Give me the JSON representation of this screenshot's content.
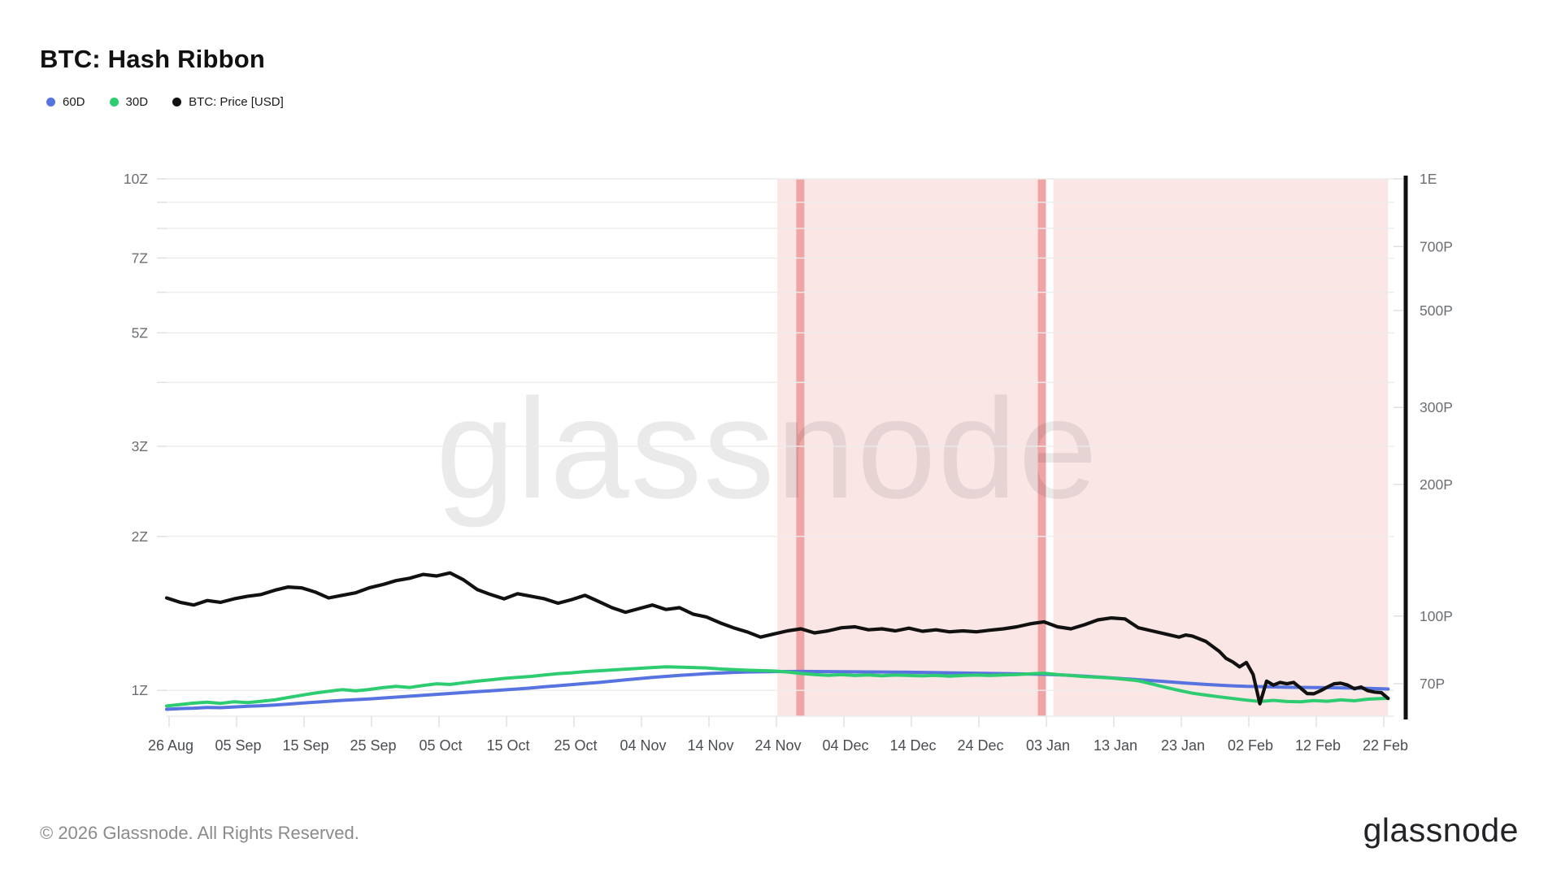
{
  "page": {
    "title": "BTC: Hash Ribbon",
    "watermark": "glassnode",
    "footer_copyright": "© 2026 Glassnode. All Rights Reserved.",
    "footer_logo": "glassnode"
  },
  "legend": [
    {
      "label": "60D",
      "color": "#5673e0"
    },
    {
      "label": "30D",
      "color": "#2ecc71"
    },
    {
      "label": "BTC: Price [USD]",
      "color": "#111111"
    }
  ],
  "colors": {
    "band_light": "#fbe6e6",
    "band_dark": "#efa5a5",
    "gridline": "#ececec",
    "tick": "#dedede",
    "axis_label": "#6b6f73",
    "x_label": "#4a4d52",
    "right_axis_bar": "#111111",
    "watermark": "#000000"
  },
  "chart_data": {
    "type": "line",
    "title": "BTC: Hash Ribbon",
    "x_axis": {
      "tick_labels": [
        "26 Aug",
        "05 Sep",
        "15 Sep",
        "25 Sep",
        "05 Oct",
        "15 Oct",
        "25 Oct",
        "04 Nov",
        "14 Nov",
        "24 Nov",
        "04 Dec",
        "14 Dec",
        "24 Dec",
        "03 Jan",
        "13 Jan",
        "23 Jan",
        "02 Feb",
        "12 Feb",
        "22 Feb"
      ],
      "tick_days": [
        0,
        10,
        20,
        30,
        40,
        50,
        60,
        70,
        80,
        90,
        100,
        110,
        120,
        130,
        140,
        150,
        160,
        170,
        180
      ],
      "total_days": 181.6
    },
    "left_axis": {
      "scale": "log",
      "unit": "Z (zetahash)",
      "top_value": 10,
      "bottom_value": 0.89,
      "gridline_values": [
        10,
        9,
        8,
        7,
        6,
        5,
        4,
        3,
        2,
        1
      ],
      "labels": [
        {
          "value": 10,
          "label": "10Z"
        },
        {
          "value": 7,
          "label": "7Z"
        },
        {
          "value": 5,
          "label": "5Z"
        },
        {
          "value": 3,
          "label": "3Z"
        },
        {
          "value": 2,
          "label": "2Z"
        },
        {
          "value": 1,
          "label": "1Z"
        }
      ]
    },
    "right_axis": {
      "scale": "log",
      "unit": "P (petahash) / E (exahash)",
      "top_value": 1000,
      "bottom_value": 59,
      "labels": [
        {
          "value": 1000,
          "label": "1E"
        },
        {
          "value": 700,
          "label": "700P"
        },
        {
          "value": 500,
          "label": "500P"
        },
        {
          "value": 300,
          "label": "300P"
        },
        {
          "value": 200,
          "label": "200P"
        },
        {
          "value": 100,
          "label": "100P"
        },
        {
          "value": 70,
          "label": "70P"
        }
      ]
    },
    "highlight_bands": [
      {
        "start_day": 90.5,
        "end_day": 130.3,
        "shade": "light"
      },
      {
        "start_day": 131.4,
        "end_day": 181.0,
        "shade": "light"
      },
      {
        "start_day": 93.3,
        "end_day": 94.5,
        "shade": "dark"
      },
      {
        "start_day": 129.1,
        "end_day": 130.3,
        "shade": "dark"
      }
    ],
    "series": [
      {
        "name": "60D",
        "axis": "left",
        "color": "#5673e0",
        "width": 4,
        "points": [
          [
            0,
            0.918
          ],
          [
            2,
            0.921
          ],
          [
            4,
            0.923
          ],
          [
            6,
            0.926
          ],
          [
            8,
            0.925
          ],
          [
            10,
            0.928
          ],
          [
            12,
            0.931
          ],
          [
            14,
            0.933
          ],
          [
            16,
            0.936
          ],
          [
            18,
            0.94
          ],
          [
            20,
            0.944
          ],
          [
            22,
            0.948
          ],
          [
            24,
            0.952
          ],
          [
            26,
            0.956
          ],
          [
            28,
            0.959
          ],
          [
            30,
            0.962
          ],
          [
            32,
            0.966
          ],
          [
            34,
            0.97
          ],
          [
            36,
            0.974
          ],
          [
            38,
            0.978
          ],
          [
            40,
            0.982
          ],
          [
            42,
            0.986
          ],
          [
            44,
            0.99
          ],
          [
            46,
            0.994
          ],
          [
            48,
            0.998
          ],
          [
            50,
            1.002
          ],
          [
            52,
            1.006
          ],
          [
            54,
            1.011
          ],
          [
            56,
            1.016
          ],
          [
            58,
            1.021
          ],
          [
            60,
            1.026
          ],
          [
            62,
            1.031
          ],
          [
            64,
            1.036
          ],
          [
            66,
            1.042
          ],
          [
            68,
            1.048
          ],
          [
            70,
            1.054
          ],
          [
            72,
            1.06
          ],
          [
            74,
            1.065
          ],
          [
            76,
            1.07
          ],
          [
            78,
            1.074
          ],
          [
            80,
            1.078
          ],
          [
            82,
            1.081
          ],
          [
            84,
            1.084
          ],
          [
            86,
            1.086
          ],
          [
            88,
            1.087
          ],
          [
            90,
            1.088
          ],
          [
            94,
            1.089
          ],
          [
            98,
            1.088
          ],
          [
            102,
            1.087
          ],
          [
            106,
            1.086
          ],
          [
            110,
            1.085
          ],
          [
            114,
            1.083
          ],
          [
            118,
            1.081
          ],
          [
            122,
            1.079
          ],
          [
            126,
            1.077
          ],
          [
            130,
            1.075
          ],
          [
            133,
            1.071
          ],
          [
            136,
            1.066
          ],
          [
            139,
            1.06
          ],
          [
            142,
            1.053
          ],
          [
            145,
            1.047
          ],
          [
            148,
            1.04
          ],
          [
            151,
            1.033
          ],
          [
            154,
            1.027
          ],
          [
            157,
            1.022
          ],
          [
            160,
            1.018
          ],
          [
            163,
            1.016
          ],
          [
            166,
            1.014
          ],
          [
            169,
            1.013
          ],
          [
            172,
            1.012
          ],
          [
            175,
            1.011
          ],
          [
            178,
            1.009
          ],
          [
            181,
            1.006
          ]
        ]
      },
      {
        "name": "30D",
        "axis": "left",
        "color": "#2ecc71",
        "width": 4,
        "points": [
          [
            0,
            0.932
          ],
          [
            2,
            0.938
          ],
          [
            4,
            0.944
          ],
          [
            6,
            0.948
          ],
          [
            8,
            0.943
          ],
          [
            10,
            0.95
          ],
          [
            12,
            0.946
          ],
          [
            14,
            0.952
          ],
          [
            16,
            0.958
          ],
          [
            18,
            0.968
          ],
          [
            20,
            0.978
          ],
          [
            22,
            0.988
          ],
          [
            24,
            0.996
          ],
          [
            26,
            1.003
          ],
          [
            28,
            0.998
          ],
          [
            30,
            1.004
          ],
          [
            32,
            1.012
          ],
          [
            34,
            1.018
          ],
          [
            36,
            1.013
          ],
          [
            38,
            1.022
          ],
          [
            40,
            1.03
          ],
          [
            42,
            1.027
          ],
          [
            44,
            1.035
          ],
          [
            46,
            1.042
          ],
          [
            48,
            1.048
          ],
          [
            50,
            1.055
          ],
          [
            52,
            1.06
          ],
          [
            54,
            1.065
          ],
          [
            56,
            1.072
          ],
          [
            58,
            1.078
          ],
          [
            60,
            1.082
          ],
          [
            62,
            1.088
          ],
          [
            64,
            1.092
          ],
          [
            66,
            1.096
          ],
          [
            68,
            1.1
          ],
          [
            70,
            1.104
          ],
          [
            72,
            1.108
          ],
          [
            74,
            1.112
          ],
          [
            76,
            1.11
          ],
          [
            78,
            1.108
          ],
          [
            80,
            1.106
          ],
          [
            82,
            1.101
          ],
          [
            84,
            1.098
          ],
          [
            86,
            1.095
          ],
          [
            88,
            1.093
          ],
          [
            90,
            1.091
          ],
          [
            92,
            1.086
          ],
          [
            94,
            1.079
          ],
          [
            96,
            1.074
          ],
          [
            98,
            1.07
          ],
          [
            100,
            1.073
          ],
          [
            102,
            1.069
          ],
          [
            104,
            1.072
          ],
          [
            106,
            1.068
          ],
          [
            108,
            1.071
          ],
          [
            110,
            1.069
          ],
          [
            112,
            1.067
          ],
          [
            114,
            1.07
          ],
          [
            116,
            1.066
          ],
          [
            118,
            1.069
          ],
          [
            120,
            1.071
          ],
          [
            122,
            1.069
          ],
          [
            124,
            1.072
          ],
          [
            126,
            1.074
          ],
          [
            128,
            1.077
          ],
          [
            130,
            1.08
          ],
          [
            132,
            1.074
          ],
          [
            134,
            1.069
          ],
          [
            136,
            1.064
          ],
          [
            138,
            1.061
          ],
          [
            140,
            1.057
          ],
          [
            142,
            1.051
          ],
          [
            144,
            1.044
          ],
          [
            146,
            1.029
          ],
          [
            148,
            1.014
          ],
          [
            150,
            1.0
          ],
          [
            152,
            0.987
          ],
          [
            154,
            0.979
          ],
          [
            156,
            0.971
          ],
          [
            158,
            0.964
          ],
          [
            160,
            0.957
          ],
          [
            162,
            0.951
          ],
          [
            164,
            0.956
          ],
          [
            166,
            0.951
          ],
          [
            168,
            0.95
          ],
          [
            170,
            0.955
          ],
          [
            172,
            0.952
          ],
          [
            174,
            0.958
          ],
          [
            176,
            0.954
          ],
          [
            178,
            0.961
          ],
          [
            181,
            0.965
          ]
        ]
      },
      {
        "name": "BTC: Price [USD]",
        "axis": "right",
        "color": "#111111",
        "width": 4.2,
        "points": [
          [
            0,
            110
          ],
          [
            2,
            107.5
          ],
          [
            4,
            106
          ],
          [
            6,
            108.5
          ],
          [
            8,
            107.5
          ],
          [
            10,
            109.5
          ],
          [
            12,
            111
          ],
          [
            14,
            112
          ],
          [
            16,
            114.5
          ],
          [
            18,
            116.5
          ],
          [
            20,
            116
          ],
          [
            22,
            113.5
          ],
          [
            24,
            110
          ],
          [
            26,
            111.5
          ],
          [
            28,
            113
          ],
          [
            30,
            116
          ],
          [
            32,
            118
          ],
          [
            34,
            120.5
          ],
          [
            36,
            122
          ],
          [
            38,
            124.5
          ],
          [
            40,
            123.5
          ],
          [
            42,
            125.5
          ],
          [
            44,
            121
          ],
          [
            46,
            115
          ],
          [
            48,
            112
          ],
          [
            50,
            109.5
          ],
          [
            52,
            112.5
          ],
          [
            54,
            111
          ],
          [
            56,
            109.5
          ],
          [
            58,
            107
          ],
          [
            60,
            109
          ],
          [
            62,
            111.5
          ],
          [
            64,
            108
          ],
          [
            66,
            104.5
          ],
          [
            68,
            102
          ],
          [
            70,
            104
          ],
          [
            72,
            106
          ],
          [
            74,
            103.5
          ],
          [
            76,
            104.5
          ],
          [
            78,
            101
          ],
          [
            80,
            99.5
          ],
          [
            82,
            96.5
          ],
          [
            84,
            94
          ],
          [
            86,
            92
          ],
          [
            88,
            89.5
          ],
          [
            90,
            91
          ],
          [
            92,
            92.5
          ],
          [
            94,
            93.5
          ],
          [
            96,
            91.5
          ],
          [
            98,
            92.5
          ],
          [
            100,
            94
          ],
          [
            102,
            94.5
          ],
          [
            104,
            93
          ],
          [
            106,
            93.5
          ],
          [
            108,
            92.5
          ],
          [
            110,
            93.8
          ],
          [
            112,
            92.3
          ],
          [
            114,
            93
          ],
          [
            116,
            92
          ],
          [
            118,
            92.5
          ],
          [
            120,
            92
          ],
          [
            122,
            92.8
          ],
          [
            124,
            93.5
          ],
          [
            126,
            94.5
          ],
          [
            128,
            96
          ],
          [
            130,
            97
          ],
          [
            132,
            94.5
          ],
          [
            134,
            93.5
          ],
          [
            136,
            95.5
          ],
          [
            138,
            98
          ],
          [
            140,
            99
          ],
          [
            142,
            98.5
          ],
          [
            144,
            94
          ],
          [
            146,
            92.5
          ],
          [
            148,
            91
          ],
          [
            150,
            89.5
          ],
          [
            151,
            90.5
          ],
          [
            152,
            90
          ],
          [
            154,
            87.5
          ],
          [
            156,
            83
          ],
          [
            157,
            80
          ],
          [
            158,
            78.5
          ],
          [
            159,
            76.5
          ],
          [
            160,
            78.3
          ],
          [
            161,
            73.5
          ],
          [
            162,
            63
          ],
          [
            163,
            71
          ],
          [
            164,
            69.5
          ],
          [
            165,
            70.5
          ],
          [
            166,
            70
          ],
          [
            167,
            70.5
          ],
          [
            168,
            68.5
          ],
          [
            169,
            66.5
          ],
          [
            170,
            66.4
          ],
          [
            171,
            67.5
          ],
          [
            172,
            68.8
          ],
          [
            173,
            70
          ],
          [
            174,
            70.2
          ],
          [
            175,
            69.5
          ],
          [
            176,
            68.2
          ],
          [
            177,
            68.8
          ],
          [
            178,
            67.5
          ],
          [
            179,
            67
          ],
          [
            180,
            66.8
          ],
          [
            181,
            64.8
          ]
        ]
      }
    ],
    "legend_position": "top-left",
    "grid": "horizontal-only"
  }
}
